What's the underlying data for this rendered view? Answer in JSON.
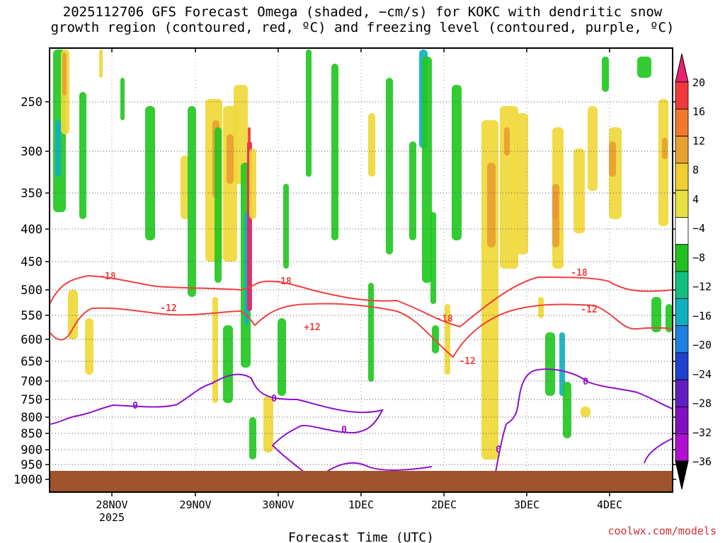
{
  "title_line1": "2025112706 GFS Forecast Omega (shaded, −cm/s) for KOKC with dendritic snow",
  "title_line2": "growth region (contoured, red, ºC) and freezing level (contoured, purple, ºC)",
  "credit": "coolwx.com/models",
  "chart_data": {
    "type": "heatmap",
    "xlabel": "Forecast Time (UTC)",
    "x_ticks": [
      {
        "label": "28NOV",
        "sub": "2025"
      },
      {
        "label": "29NOV",
        "sub": ""
      },
      {
        "label": "30NOV",
        "sub": ""
      },
      {
        "label": "1DEC",
        "sub": ""
      },
      {
        "label": "2DEC",
        "sub": ""
      },
      {
        "label": "3DEC",
        "sub": ""
      },
      {
        "label": "4DEC",
        "sub": ""
      }
    ],
    "y_ticks": [
      "250",
      "300",
      "350",
      "400",
      "450",
      "500",
      "550",
      "600",
      "650",
      "700",
      "750",
      "800",
      "850",
      "900",
      "950",
      "1000"
    ],
    "y_levels": [
      250,
      300,
      350,
      400,
      450,
      500,
      550,
      600,
      650,
      700,
      750,
      800,
      850,
      900,
      950,
      1000
    ],
    "colorbar": {
      "labels": [
        "20",
        "16",
        "12",
        "8",
        "4",
        "−4",
        "−8",
        "−12",
        "−16",
        "−20",
        "−24",
        "−28",
        "−32",
        "−36"
      ],
      "colors": [
        "#e8226e",
        "#f03a3a",
        "#f07a2a",
        "#e8a030",
        "#f0d030",
        "#e8e040",
        "#ffffff",
        "#20c020",
        "#10c080",
        "#10b0c0",
        "#2080e0",
        "#2040d0",
        "#6020c0",
        "#8010c0",
        "#b010d0",
        "#a8a8a8"
      ]
    },
    "contour_labels": {
      "red": [
        "-18",
        "-12",
        "-18",
        "+12",
        "-18",
        "-12",
        "-18",
        "-12"
      ],
      "purple": [
        "0",
        "0",
        "0",
        "0",
        "0"
      ]
    },
    "colors": {
      "dgz_contour": "#f04040",
      "freezing_contour": "#9010c8",
      "terrain": "#a0522d"
    }
  }
}
